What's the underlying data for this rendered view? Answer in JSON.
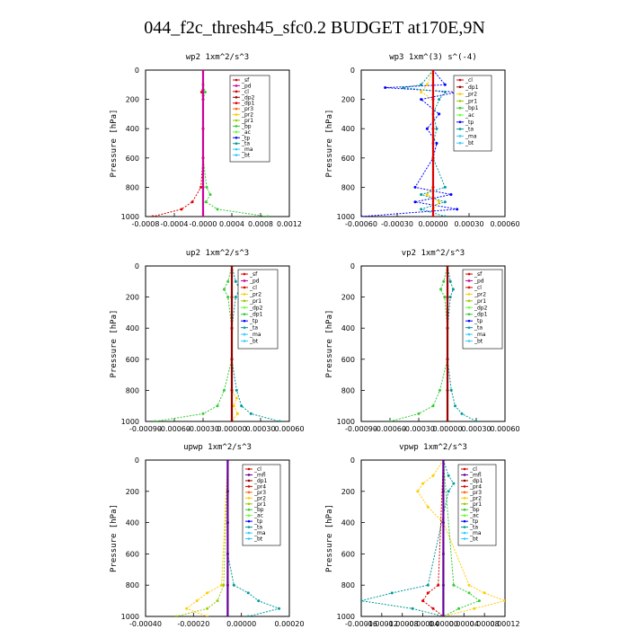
{
  "title": "044_f2c_thresh45_sfc0.2  BUDGET at170E,9N",
  "colors": {
    "red": "#dd0000",
    "magenta": "#cc0099",
    "dkred": "#990000",
    "orange": "#ff6600",
    "gold": "#ffcc00",
    "yellowgreen": "#99cc00",
    "green": "#33cc33",
    "lime": "#66ff33",
    "blue": "#0000ff",
    "teal": "#009999",
    "cyan": "#33ccff",
    "purple": "#660099",
    "navy": "#000080"
  },
  "chart_data": [
    {
      "type": "line",
      "title": "wp2  1xm^2/s^3",
      "ylabel": "Pressure [hPa]",
      "ylim": [
        1000,
        0
      ],
      "yticks": [
        "0",
        "200",
        "400",
        "600",
        "800",
        "1000"
      ],
      "xlim": [
        -0.0008,
        0.0012
      ],
      "xticks": [
        "-0.0008",
        "-0.0004",
        "-0.0000",
        "0.0004",
        "0.0008",
        "0.0012"
      ],
      "legend": [
        "_sf",
        "_pd",
        "_cl",
        "_dp2",
        "_dp1",
        "_pr3",
        "_pr2",
        "_pr1",
        "_bp",
        "_ac",
        "_tp",
        "_ta",
        "_ma",
        "_bt"
      ],
      "legend_colors": [
        "red",
        "magenta",
        "red",
        "dkred",
        "red",
        "orange",
        "gold",
        "yellowgreen",
        "green",
        "lime",
        "blue",
        "teal",
        "cyan",
        "cyan"
      ],
      "series": [
        {
          "color": "red",
          "y": [
            0,
            100,
            150,
            200,
            400,
            600,
            800,
            900,
            950,
            1000
          ],
          "x": [
            0,
            0,
            -2e-05,
            0,
            0,
            0,
            -3e-05,
            -0.00015,
            -0.0003,
            -0.0007
          ]
        },
        {
          "color": "green",
          "y": [
            0,
            100,
            150,
            200,
            400,
            600,
            800,
            850,
            900,
            950,
            1000
          ],
          "x": [
            0,
            0,
            3e-05,
            0,
            0,
            0,
            5e-05,
            0.0001,
            4e-05,
            0.0002,
            0.0009
          ]
        },
        {
          "color": "magenta",
          "y": [
            0,
            200,
            400,
            600,
            800,
            1000
          ],
          "x": [
            0,
            0,
            0,
            0,
            0,
            0
          ]
        }
      ]
    },
    {
      "type": "line",
      "title": "wp3  1xm^(3) s^(-4)",
      "ylabel": "Pressure [hPa]",
      "ylim": [
        1000,
        0
      ],
      "yticks": [
        "0",
        "200",
        "400",
        "600",
        "800",
        "1000"
      ],
      "xlim": [
        -0.0006,
        0.0006
      ],
      "xticks": [
        "-0.00060",
        "-0.00030",
        "0.00000",
        "0.00030",
        "0.00060"
      ],
      "legend": [
        "_cl",
        "_dp1",
        "_pr2",
        "_pr1",
        "_bp1",
        "_ac",
        "_tp",
        "_ta",
        "_ma",
        "_bt"
      ],
      "legend_colors": [
        "red",
        "dkred",
        "gold",
        "yellowgreen",
        "green",
        "lime",
        "blue",
        "teal",
        "cyan",
        "cyan"
      ],
      "series": [
        {
          "color": "blue",
          "y": [
            0,
            100,
            120,
            150,
            200,
            300,
            400,
            500,
            600,
            800,
            850,
            900,
            950,
            1000
          ],
          "x": [
            0,
            0.0001,
            -0.0004,
            0.0002,
            -0.0001,
            5e-05,
            -5e-05,
            3e-05,
            0,
            -0.00015,
            0.00015,
            -0.00015,
            0.0002,
            -0.0006
          ]
        },
        {
          "color": "teal",
          "y": [
            0,
            100,
            120,
            150,
            200,
            300,
            400,
            500,
            600,
            800,
            850,
            900,
            950,
            1000
          ],
          "x": [
            0,
            -0.0001,
            -0.00025,
            0.0001,
            5e-05,
            0,
            3e-05,
            0,
            0,
            0.0001,
            -0.0001,
            0.0001,
            -0.0001,
            0.0001
          ]
        },
        {
          "color": "gold",
          "y": [
            0,
            100,
            150,
            200,
            800,
            850,
            900,
            950,
            1000
          ],
          "x": [
            0,
            -5e-05,
            -0.0001,
            0,
            0,
            -5e-05,
            5e-05,
            0,
            0
          ]
        },
        {
          "color": "red",
          "y": [
            0,
            200,
            400,
            600,
            800,
            1000
          ],
          "x": [
            0,
            0,
            0,
            0,
            0,
            0
          ]
        }
      ]
    },
    {
      "type": "line",
      "title": "up2  1xm^2/s^3",
      "ylabel": "Pressure [hPa]",
      "ylim": [
        1000,
        0
      ],
      "yticks": [
        "0",
        "200",
        "400",
        "600",
        "800",
        "1000"
      ],
      "xlim": [
        -0.0009,
        0.0006
      ],
      "xticks": [
        "-0.00090",
        "-0.00060",
        "-0.00030",
        "0.00000",
        "0.00030",
        "0.00060"
      ],
      "legend": [
        "_sf",
        "_pd",
        "_cl",
        "_pr2",
        "_pr1",
        "_dp2",
        "_dp1",
        "_tp",
        "_ta",
        "_ma",
        "_bt"
      ],
      "legend_colors": [
        "red",
        "magenta",
        "red",
        "gold",
        "yellowgreen",
        "lime",
        "green",
        "blue",
        "teal",
        "cyan",
        "cyan"
      ],
      "series": [
        {
          "color": "green",
          "y": [
            0,
            100,
            150,
            200,
            400,
            600,
            800,
            900,
            950,
            1000
          ],
          "x": [
            0,
            -4e-05,
            -8e-05,
            -4e-05,
            0,
            0,
            -8e-05,
            -0.00015,
            -0.0003,
            -0.0008
          ]
        },
        {
          "color": "teal",
          "y": [
            0,
            100,
            150,
            200,
            400,
            600,
            800,
            900,
            950,
            1000
          ],
          "x": [
            0,
            4e-05,
            8e-05,
            4e-05,
            0,
            0,
            5e-05,
            0.0001,
            0.0002,
            0.0005
          ]
        },
        {
          "color": "gold",
          "y": [
            0,
            800,
            850,
            900,
            950,
            1000
          ],
          "x": [
            0,
            0,
            5e-05,
            2e-05,
            6e-05,
            0
          ]
        },
        {
          "color": "dkred",
          "y": [
            0,
            200,
            400,
            600,
            800,
            1000
          ],
          "x": [
            0,
            0,
            0,
            0,
            0,
            0
          ]
        }
      ]
    },
    {
      "type": "line",
      "title": "vp2  1xm^2/s^3",
      "ylabel": "Pressure [hPa]",
      "ylim": [
        1000,
        0
      ],
      "yticks": [
        "0",
        "200",
        "400",
        "600",
        "800",
        "1000"
      ],
      "xlim": [
        -0.0009,
        0.0006
      ],
      "xticks": [
        "-0.00090",
        "-0.00060",
        "-0.00030",
        "0.00000",
        "0.00030",
        "0.00060"
      ],
      "legend": [
        "_sf",
        "_pd",
        "_cl",
        "_pr2",
        "_pr1",
        "_dp2",
        "_dp1",
        "_tp",
        "_ta",
        "_ma",
        "_bt"
      ],
      "legend_colors": [
        "red",
        "magenta",
        "red",
        "gold",
        "yellowgreen",
        "lime",
        "green",
        "blue",
        "teal",
        "cyan",
        "cyan"
      ],
      "series": [
        {
          "color": "green",
          "y": [
            0,
            100,
            150,
            200,
            400,
            600,
            800,
            900,
            950,
            1000
          ],
          "x": [
            0,
            -4e-05,
            -7e-05,
            -3e-05,
            0,
            0,
            -8e-05,
            -0.00015,
            -0.0003,
            -0.0006
          ]
        },
        {
          "color": "teal",
          "y": [
            0,
            100,
            150,
            200,
            400,
            600,
            800,
            900,
            950,
            1000
          ],
          "x": [
            0,
            3e-05,
            6e-05,
            3e-05,
            0,
            0,
            4e-05,
            8e-05,
            0.00015,
            0.0003
          ]
        },
        {
          "color": "dkred",
          "y": [
            0,
            200,
            400,
            600,
            800,
            1000
          ],
          "x": [
            0,
            0,
            0,
            0,
            0,
            0
          ]
        }
      ]
    },
    {
      "type": "line",
      "title": "upwp  1xm^2/s^3",
      "ylabel": "Pressure [hPa]",
      "ylim": [
        1000,
        0
      ],
      "yticks": [
        "0",
        "200",
        "400",
        "600",
        "800",
        "1000"
      ],
      "xlim": [
        -0.0004,
        0.0003
      ],
      "xticks": [
        "-0.00040",
        "-0.00020",
        "0.00000",
        "0.00020"
      ],
      "legend": [
        "_cl",
        "_mfl",
        "_dp1",
        "_pr4",
        "_pr3",
        "_pr2",
        "_pr1",
        "_bp",
        "_ac",
        "_tp",
        "_ta",
        "_ma",
        "_bt"
      ],
      "legend_colors": [
        "red",
        "purple",
        "dkred",
        "red",
        "orange",
        "gold",
        "yellowgreen",
        "green",
        "lime",
        "blue",
        "teal",
        "cyan",
        "cyan"
      ],
      "series": [
        {
          "color": "gold",
          "y": [
            0,
            800,
            850,
            900,
            950,
            1000
          ],
          "x": [
            0,
            -3e-05,
            -0.0001,
            -0.00015,
            -0.0002,
            -0.0001
          ]
        },
        {
          "color": "teal",
          "y": [
            0,
            200,
            400,
            600,
            800,
            850,
            900,
            950,
            1000
          ],
          "x": [
            0,
            0,
            0,
            0,
            3e-05,
            0.0001,
            0.00015,
            0.00025,
            0.0001
          ]
        },
        {
          "color": "yellowgreen",
          "y": [
            0,
            800,
            900,
            950,
            1000
          ],
          "x": [
            0,
            -2e-05,
            -5e-05,
            -0.0001,
            -0.00025
          ]
        },
        {
          "color": "purple",
          "y": [
            0,
            200,
            400,
            600,
            800,
            1000
          ],
          "x": [
            0,
            0,
            0,
            0,
            0,
            0
          ]
        }
      ]
    },
    {
      "type": "line",
      "title": "vpwp  1xm^2/s^3",
      "ylabel": "Pressure [hPa]",
      "ylim": [
        1000,
        0
      ],
      "yticks": [
        "0",
        "200",
        "400",
        "600",
        "800",
        "1000"
      ],
      "xlim": [
        -0.00016,
        0.00012
      ],
      "xticks": [
        "-0.00016",
        "-0.00012",
        "-0.00008",
        "-0.00004",
        "0.00000",
        "0.00004",
        "0.00008",
        "0.00012"
      ],
      "legend": [
        "_cl",
        "_mfl",
        "_dp1",
        "_pr4",
        "_pr3",
        "_pr2",
        "_pr1",
        "_bp",
        "_ac",
        "_tp",
        "_ta",
        "_ma",
        "_bt"
      ],
      "legend_colors": [
        "red",
        "purple",
        "dkred",
        "red",
        "orange",
        "gold",
        "yellowgreen",
        "green",
        "lime",
        "blue",
        "teal",
        "cyan",
        "cyan"
      ],
      "series": [
        {
          "color": "gold",
          "y": [
            0,
            100,
            150,
            200,
            300,
            400,
            800,
            850,
            900,
            950,
            1000
          ],
          "x": [
            0,
            -2e-05,
            -4e-05,
            -5e-05,
            -3e-05,
            0,
            5e-05,
            8e-05,
            0.00012,
            6e-05,
            0
          ]
        },
        {
          "color": "teal",
          "y": [
            0,
            100,
            150,
            200,
            800,
            850,
            900,
            950,
            1000
          ],
          "x": [
            0,
            1e-05,
            2e-05,
            1e-05,
            -3e-05,
            -0.0001,
            -0.00016,
            -6e-05,
            0
          ]
        },
        {
          "color": "green",
          "y": [
            0,
            800,
            850,
            900,
            950,
            1000
          ],
          "x": [
            0,
            2e-05,
            5e-05,
            7e-05,
            3e-05,
            0
          ]
        },
        {
          "color": "red",
          "y": [
            0,
            800,
            850,
            900,
            950,
            1000
          ],
          "x": [
            0,
            -1e-05,
            -3e-05,
            -4e-05,
            -2e-05,
            0
          ]
        },
        {
          "color": "purple",
          "y": [
            0,
            200,
            400,
            600,
            800,
            1000
          ],
          "x": [
            0,
            0,
            0,
            0,
            0,
            0
          ]
        }
      ]
    }
  ]
}
